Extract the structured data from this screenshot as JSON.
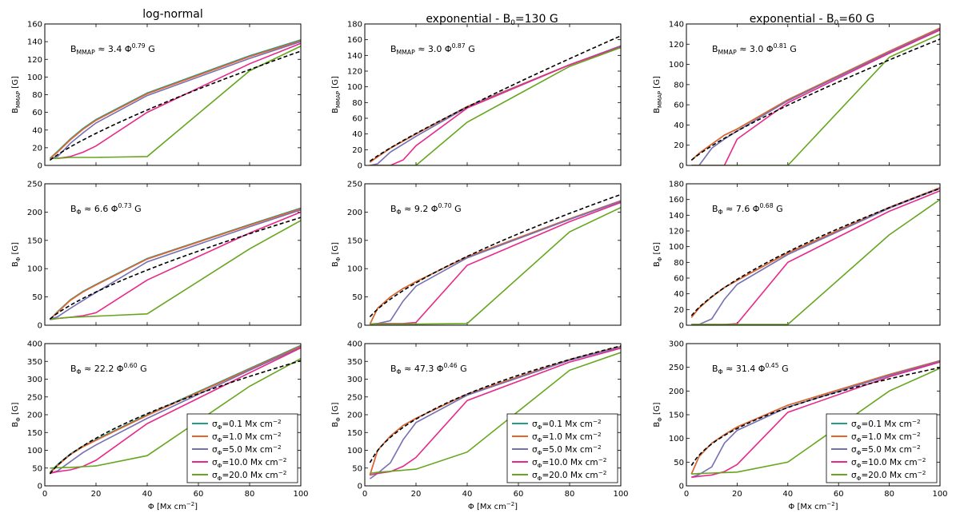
{
  "chart_data": {
    "type": "line",
    "columns": [
      {
        "title": "log-normal"
      },
      {
        "title_main": "exponential - B",
        "title_sub": "0",
        "title_tail": "=130 G"
      },
      {
        "title_main": "exponential - B",
        "title_sub": "0",
        "title_tail": "=60 G"
      }
    ],
    "xlabel": "Φ [Mx cm⁻²]",
    "x": [
      2,
      5,
      10,
      15,
      20,
      40,
      80,
      100
    ],
    "xticks": [
      0,
      20,
      40,
      60,
      80,
      100
    ],
    "xlim": [
      0,
      100
    ],
    "legend": {
      "location": "lower-right",
      "entries": [
        {
          "label": "σ_Φ=0.1 Mx cm⁻²",
          "color": "#1f9e89"
        },
        {
          "label": "σ_Φ=1.0 Mx cm⁻²",
          "color": "#e8622a"
        },
        {
          "label": "σ_Φ=5.0 Mx cm⁻²",
          "color": "#7570b3"
        },
        {
          "label": "σ_Φ=10.0 Mx cm⁻²",
          "color": "#e7298a"
        },
        {
          "label": "σ_Φ=20.0 Mx cm⁻²",
          "color": "#66a61e"
        }
      ]
    },
    "fit_style": "black dashed",
    "panels": [
      {
        "row": 0,
        "col": 0,
        "ylabel": "B_MMAP [G]",
        "ylim": [
          0,
          160
        ],
        "yticks": [
          0,
          20,
          40,
          60,
          80,
          100,
          120,
          140,
          160
        ],
        "annotation": "B_MMAP ≈ 3.4 Φ^0.79 G",
        "fit": {
          "coef": 3.4,
          "exp": 0.79
        },
        "series": [
          [
            8,
            16,
            30,
            42,
            52,
            82,
            124,
            142
          ],
          [
            8,
            15,
            29,
            41,
            51,
            81,
            123,
            141
          ],
          [
            8,
            10,
            25,
            37,
            48,
            79,
            121,
            140
          ],
          [
            8,
            8,
            10,
            15,
            22,
            60,
            115,
            138
          ],
          [
            8,
            8,
            9,
            9,
            9,
            10,
            107,
            135
          ]
        ]
      },
      {
        "row": 0,
        "col": 1,
        "ylabel": "B_MMAP [G]",
        "ylim": [
          0,
          180
        ],
        "yticks": [
          0,
          20,
          40,
          60,
          80,
          100,
          120,
          140,
          160,
          180
        ],
        "annotation": "B_MMAP ≈ 3.0 Φ^0.87 G",
        "fit": {
          "coef": 3.0,
          "exp": 0.87
        },
        "series": [
          [
            4,
            11,
            22,
            31,
            40,
            75,
            128,
            152
          ],
          [
            4,
            11,
            22,
            31,
            40,
            75,
            128,
            152
          ],
          [
            0,
            2,
            17,
            27,
            37,
            74,
            128,
            152
          ],
          [
            0,
            0,
            0,
            7,
            25,
            73,
            128,
            151
          ],
          [
            0,
            0,
            0,
            0,
            0,
            55,
            126,
            150
          ]
        ]
      },
      {
        "row": 0,
        "col": 2,
        "ylabel": "B_MMAP [G]",
        "ylim": [
          0,
          140
        ],
        "yticks": [
          0,
          20,
          40,
          60,
          80,
          100,
          120,
          140
        ],
        "annotation": "B_MMAP ≈ 3.0 Φ^0.81 G",
        "fit": {
          "coef": 3.0,
          "exp": 0.81
        },
        "series": [
          [
            5,
            12,
            21,
            30,
            36,
            65,
            113,
            136
          ],
          [
            5,
            12,
            21,
            30,
            36,
            65,
            113,
            136
          ],
          [
            0,
            0,
            17,
            26,
            34,
            64,
            112,
            135
          ],
          [
            0,
            0,
            0,
            0,
            26,
            62,
            111,
            134
          ],
          [
            0,
            0,
            0,
            0,
            0,
            0,
            107,
            130
          ]
        ]
      },
      {
        "row": 1,
        "col": 0,
        "ylabel": "B_Φ [G]",
        "ylim": [
          0,
          250
        ],
        "yticks": [
          0,
          50,
          100,
          150,
          200,
          250
        ],
        "annotation": "B_Φ ≈ 6.6 Φ^0.73 G",
        "fit": {
          "coef": 6.6,
          "exp": 0.73
        },
        "series": [
          [
            10,
            24,
            45,
            60,
            72,
            118,
            178,
            207
          ],
          [
            10,
            23,
            44,
            59,
            71,
            117,
            177,
            206
          ],
          [
            10,
            15,
            30,
            44,
            58,
            112,
            174,
            204
          ],
          [
            10,
            12,
            14,
            17,
            22,
            80,
            163,
            200
          ],
          [
            10,
            12,
            14,
            15,
            16,
            20,
            135,
            185
          ]
        ]
      },
      {
        "row": 1,
        "col": 1,
        "ylabel": "B_Φ [G]",
        "ylim": [
          0,
          250
        ],
        "yticks": [
          0,
          50,
          100,
          150,
          200,
          250
        ],
        "annotation": "B_Φ ≈ 9.2 Φ^0.70 G",
        "fit": {
          "coef": 9.2,
          "exp": 0.7
        },
        "series": [
          [
            2,
            30,
            50,
            65,
            77,
            121,
            188,
            220
          ],
          [
            2,
            30,
            50,
            65,
            77,
            121,
            188,
            220
          ],
          [
            2,
            3,
            8,
            43,
            69,
            119,
            187,
            219
          ],
          [
            2,
            3,
            3,
            3,
            5,
            106,
            183,
            217
          ],
          [
            2,
            2,
            2,
            2,
            2,
            3,
            165,
            208
          ]
        ]
      },
      {
        "row": 1,
        "col": 2,
        "ylabel": "B_Φ [G]",
        "ylim": [
          0,
          180
        ],
        "yticks": [
          0,
          20,
          40,
          60,
          80,
          100,
          120,
          140,
          160,
          180
        ],
        "annotation": "B_Φ ≈ 7.6 Φ^0.68 G",
        "fit": {
          "coef": 7.6,
          "exp": 0.68
        },
        "series": [
          [
            10,
            22,
            36,
            48,
            57,
            92,
            150,
            175
          ],
          [
            10,
            22,
            36,
            48,
            57,
            92,
            150,
            175
          ],
          [
            1,
            1,
            8,
            33,
            52,
            90,
            149,
            174
          ],
          [
            1,
            1,
            1,
            1,
            2,
            80,
            145,
            171
          ],
          [
            1,
            1,
            1,
            1,
            1,
            1,
            115,
            160
          ]
        ]
      },
      {
        "row": 2,
        "col": 0,
        "ylabel": "B_Φ [G]",
        "ylim": [
          0,
          400
        ],
        "yticks": [
          0,
          50,
          100,
          150,
          200,
          250,
          300,
          350,
          400
        ],
        "annotation": "B_Φ ≈ 22.2 Φ^0.60 G",
        "fit": {
          "coef": 22.2,
          "exp": 0.6
        },
        "series": [
          [
            38,
            60,
            90,
            112,
            130,
            200,
            330,
            395
          ],
          [
            36,
            57,
            88,
            110,
            128,
            198,
            328,
            393
          ],
          [
            35,
            42,
            68,
            94,
            115,
            190,
            325,
            390
          ],
          [
            35,
            40,
            45,
            55,
            72,
            175,
            318,
            388
          ],
          [
            50,
            51,
            52,
            54,
            56,
            85,
            280,
            358
          ]
        ]
      },
      {
        "row": 2,
        "col": 1,
        "ylabel": "B_Φ [G]",
        "ylim": [
          0,
          400
        ],
        "yticks": [
          0,
          50,
          100,
          150,
          200,
          250,
          300,
          350,
          400
        ],
        "annotation": "B_Φ ≈ 47.3 Φ^0.46 G",
        "fit": {
          "coef": 47.3,
          "exp": 0.46
        },
        "series": [
          [
            30,
            100,
            140,
            170,
            190,
            258,
            355,
            392
          ],
          [
            30,
            100,
            140,
            170,
            190,
            258,
            355,
            392
          ],
          [
            20,
            35,
            65,
            130,
            178,
            255,
            353,
            390
          ],
          [
            30,
            35,
            40,
            55,
            80,
            240,
            348,
            387
          ],
          [
            35,
            38,
            41,
            44,
            47,
            95,
            325,
            375
          ]
        ]
      },
      {
        "row": 2,
        "col": 2,
        "ylabel": "B_Φ [G]",
        "ylim": [
          0,
          300
        ],
        "yticks": [
          0,
          50,
          100,
          150,
          200,
          250,
          300
        ],
        "annotation": "B_Φ ≈ 31.4 Φ^0.45 G",
        "fit": {
          "coef": 31.4,
          "exp": 0.45
        },
        "series": [
          [
            25,
            62,
            90,
            108,
            124,
            170,
            235,
            264
          ],
          [
            25,
            62,
            90,
            108,
            124,
            170,
            235,
            264
          ],
          [
            18,
            24,
            40,
            90,
            117,
            166,
            233,
            263
          ],
          [
            18,
            20,
            23,
            30,
            45,
            155,
            230,
            261
          ],
          [
            25,
            26,
            27,
            28,
            29,
            50,
            200,
            248
          ]
        ]
      }
    ]
  }
}
